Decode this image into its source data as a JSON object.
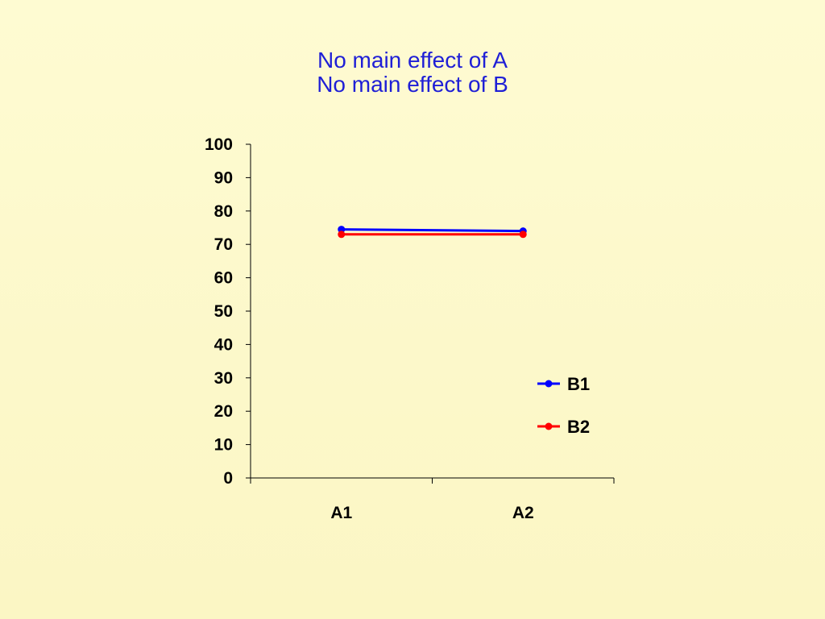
{
  "slide": {
    "title_line1": "No main effect of A",
    "title_line2": "No main effect of B",
    "title_color": "#1f1fd6"
  },
  "chart_data": {
    "type": "line",
    "title": "No main effect of A\nNo main effect of B",
    "categories": [
      "A1",
      "A2"
    ],
    "series": [
      {
        "name": "B1",
        "values": [
          74.5,
          74
        ],
        "color": "#0000ff"
      },
      {
        "name": "B2",
        "values": [
          73,
          73
        ],
        "color": "#ff0000"
      }
    ],
    "ylim": [
      0,
      100
    ],
    "yticks": [
      0,
      10,
      20,
      30,
      40,
      50,
      60,
      70,
      80,
      90,
      100
    ],
    "grid": false,
    "legend": "right",
    "xlabel": "",
    "ylabel": ""
  }
}
